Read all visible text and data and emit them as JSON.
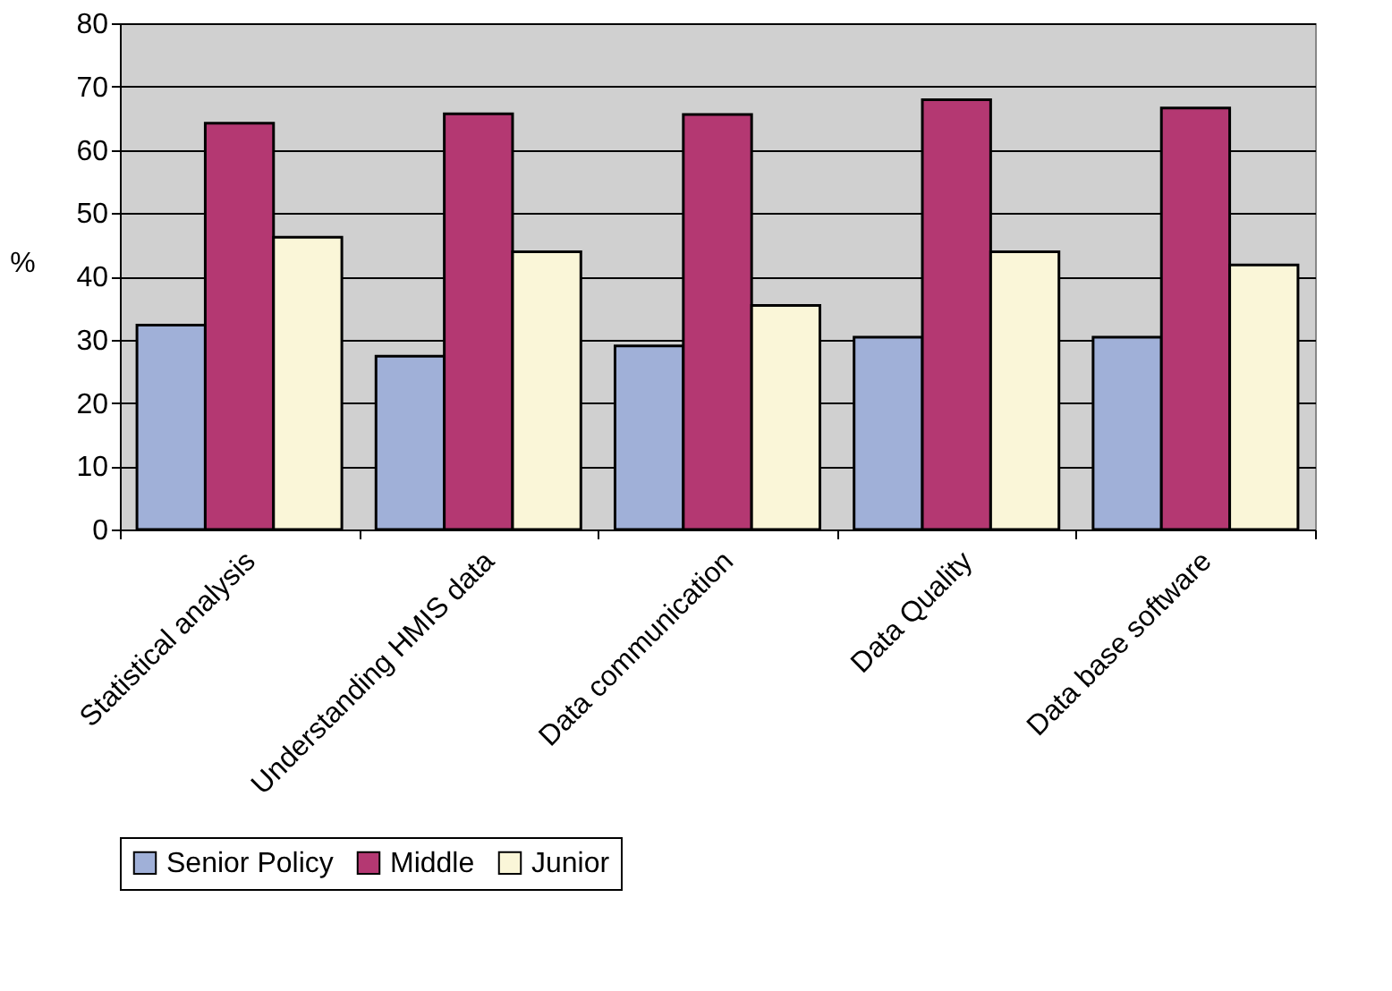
{
  "chart_data": {
    "type": "bar",
    "ylabel": "%",
    "categories": [
      "Statistical analysis",
      "Understanding  HMIS data",
      "Data communication",
      "Data Quality",
      "Data base software"
    ],
    "series": [
      {
        "name": "Senior Policy",
        "color": "#a0b0d8",
        "values": [
          32.3,
          27.4,
          29.0,
          30.4,
          30.4
        ]
      },
      {
        "name": "Middle",
        "color": "#b43872",
        "values": [
          64.2,
          65.7,
          65.6,
          67.9,
          66.6
        ]
      },
      {
        "name": "Junior",
        "color": "#faf6d8",
        "values": [
          46.2,
          43.9,
          35.4,
          43.9,
          41.8
        ]
      }
    ],
    "ylim": [
      0,
      80
    ],
    "yticks": [
      0,
      10,
      20,
      30,
      40,
      50,
      60,
      70,
      80
    ],
    "grid": "y",
    "legend": "bottom"
  }
}
